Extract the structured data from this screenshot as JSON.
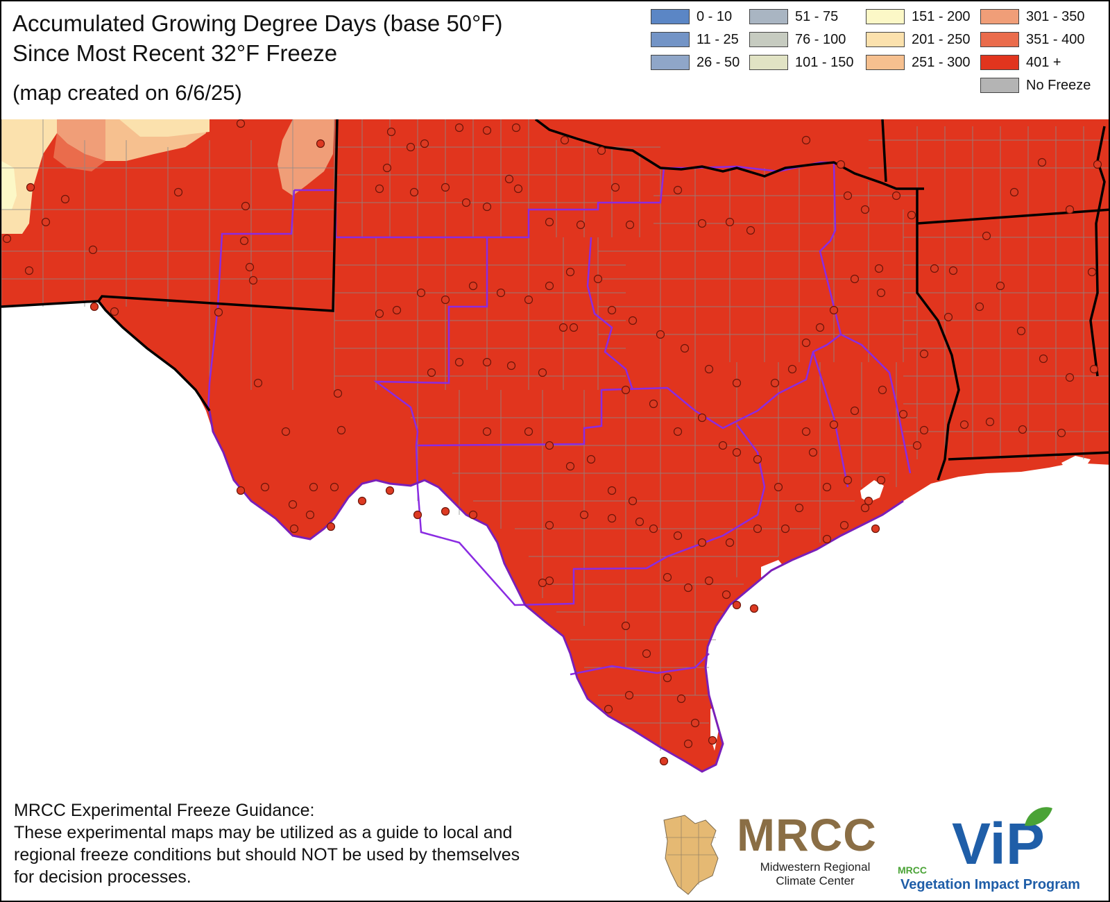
{
  "header": {
    "title_line1": "Accumulated Growing Degree Days (base 50°F)",
    "title_line2": "Since Most Recent 32°F Freeze",
    "created": "(map created on 6/6/25)"
  },
  "legend": {
    "items": [
      {
        "label": "0 - 10",
        "color": "#5b86c5"
      },
      {
        "label": "11 - 25",
        "color": "#7394c6"
      },
      {
        "label": "26 - 50",
        "color": "#8fa6c8"
      },
      {
        "label": "51 - 75",
        "color": "#a9b5c2"
      },
      {
        "label": "76 - 100",
        "color": "#c6cbc0"
      },
      {
        "label": "101 - 150",
        "color": "#e1e3c4"
      },
      {
        "label": "151 - 200",
        "color": "#fcf8c7"
      },
      {
        "label": "201 - 250",
        "color": "#fbe1ad"
      },
      {
        "label": "251 - 300",
        "color": "#f6c08f"
      },
      {
        "label": "301 - 350",
        "color": "#f09e78"
      },
      {
        "label": "351 - 400",
        "color": "#ea6c4c"
      },
      {
        "label": "401 +",
        "color": "#e1351e"
      },
      {
        "label": "No Freeze",
        "color": "#b4b4b4"
      }
    ]
  },
  "map": {
    "dominant_category": "401 +",
    "fill_color": "#e1351e",
    "county_line_color": "#8a8a8a",
    "state_line_color": "#000000",
    "region_line_color": "#8a2be2",
    "station_marker_color": "#dd3a22"
  },
  "footer": {
    "disclaimer_line1": "MRCC Experimental Freeze Guidance:",
    "disclaimer_line2": "These experimental maps may be utilized as a guide to local and",
    "disclaimer_line3": "regional freeze conditions but should NOT be used by themselves",
    "disclaimer_line4": "for decision processes.",
    "mrcc_logo_text": "MRCC",
    "mrcc_name_line1": "Midwestern Regional",
    "mrcc_name_line2": "Climate Center",
    "vip_small_text": "MRCC",
    "vip_logo_text": "ViP",
    "vip_name": "Vegetation Impact Program"
  }
}
